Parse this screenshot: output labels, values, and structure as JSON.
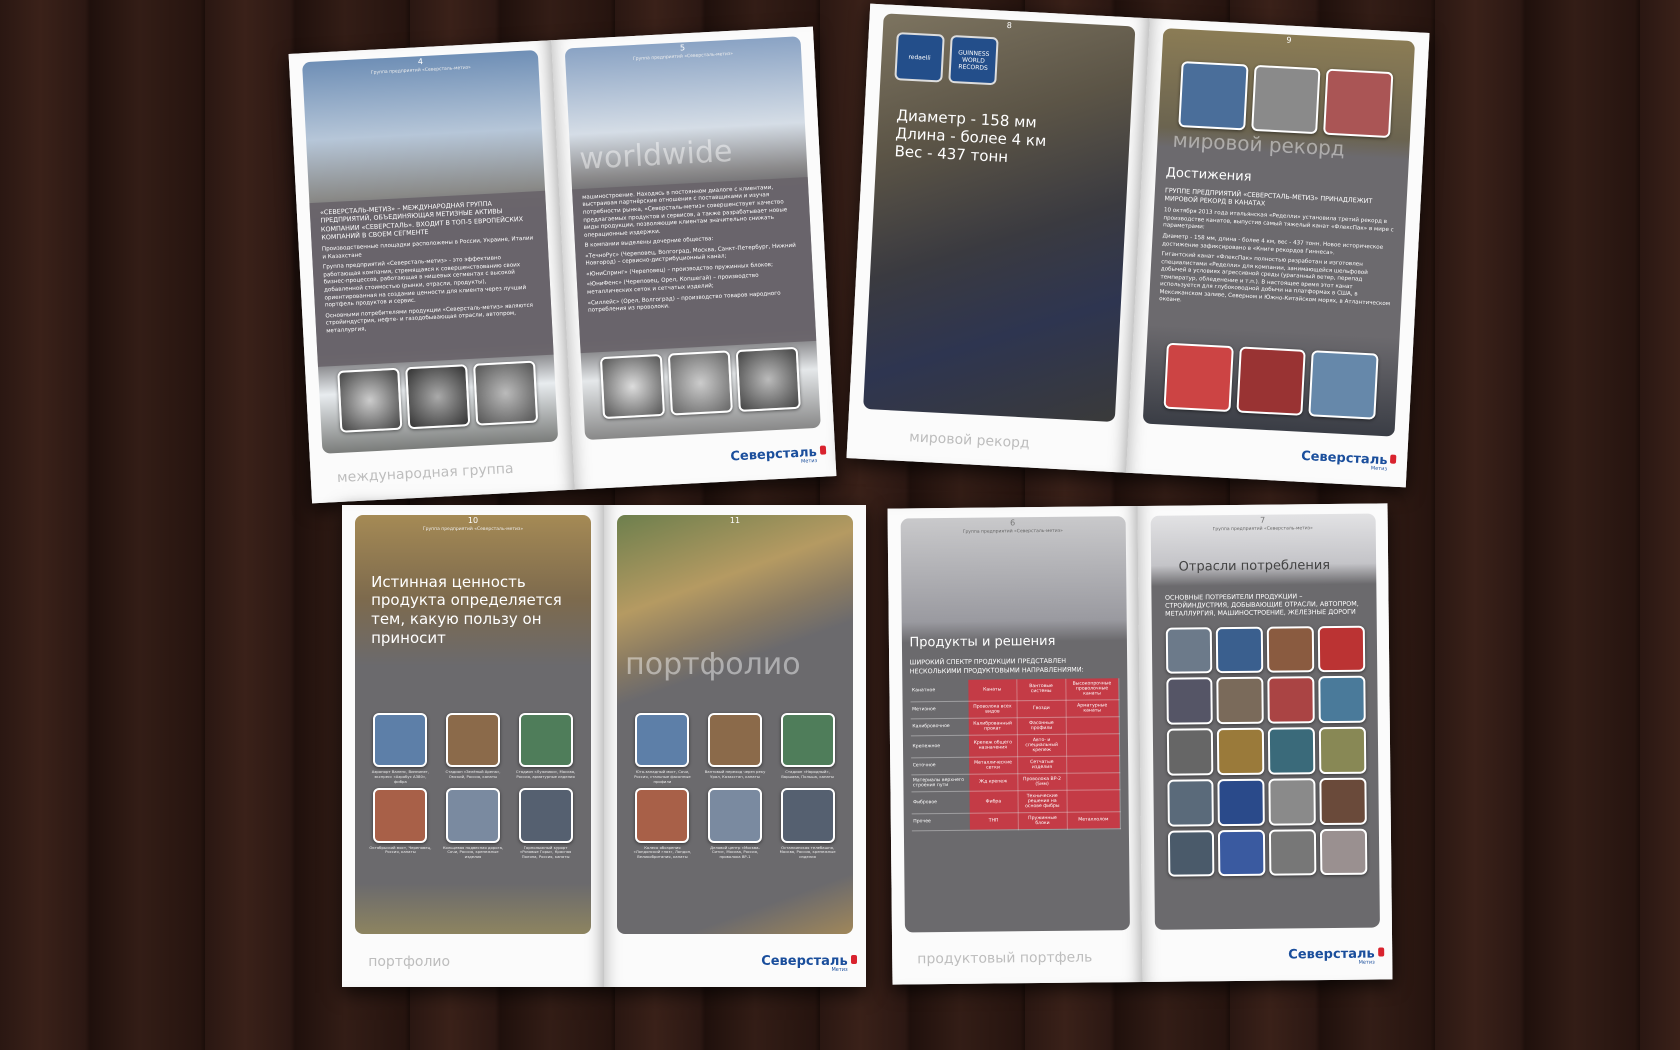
{
  "spreads": [
    {
      "left": {
        "page": "4",
        "header": "Группа предприятий «Северсталь-метиз»",
        "lead": "«Северсталь-метиз» – международная группа предприятий, объединяющая метизные активы компании «Северсталь». Входит в топ-5 европейских компаний в своем сегменте",
        "body": [
          "Производственные площадки расположены в России, Украине, Италии и Казахстане",
          "Группа предприятий «Северсталь-метиз» - это эффективно работающая компания, стремящаяся к совершенствованию своих бизнес-процессов, работающая в нишевых сегментах с высокой добавленной стоимостью (рынки, отрасли, продукты), ориентированная на создание ценности для клиента через лучший портфель продуктов и сервис.",
          "Основными потребителями продукции «Северсталь-метиз» являются стройиндустрия, нефте- и газодобывающая отрасли, автопром, металлургия,"
        ],
        "footer": "международная группа"
      },
      "right": {
        "page": "5",
        "header": "Группа предприятий «Северсталь-метиз»",
        "overlay": "worldwide",
        "body": [
          "машиностроение. Находясь в постоянном диалоге с клиентами, выстраивая партнёрские отношения с поставщиками и изучая потребности рынка, «Северсталь-метиз» совершенствует качество предлагаемых продуктов и сервисов, а также разрабатывает новые виды продукции, позволяющие клиентам значительно снижать операционные издержки.",
          "В компании выделены дочерние общества:",
          "«ТечноРус» (Череповец, Волгоград, Москва, Санкт-Петербург, Нижний Новгород) – сервисно-дистрибуционный канал;",
          "«ЮниСпринг» (Череповец) – производство пружинных блоков;",
          "«ЮниФенс» (Череповец, Орел, Копшегай) – производство металлических сеток и сетчатых изделий;",
          "«Силлейс» (Орел, Волгоград) – производство товаров народного потребления из проволоки."
        ],
        "logo": "Северсталь",
        "logo_sub": "Метиз"
      }
    },
    {
      "left": {
        "page": "8",
        "badges": [
          "redaelli",
          "GUINNESS WORLD RECORDS"
        ],
        "facts": [
          "Диаметр - 158 мм",
          "Длина - более 4 км",
          "Вес - 437 тонн"
        ],
        "footer": "мировой рекорд"
      },
      "right": {
        "page": "9",
        "overlay": "мировой рекорд",
        "heading": "Достижения",
        "lead": "Группе предприятий «Северсталь-метиз» принадлежит мировой рекорд в канатах",
        "body": [
          "10 октября 2013 года итальянская «Ределли» установила третий рекорд в производстве канатов, выпустив самый тяжелый канат «ФлексПак» в мире с параметрами:",
          "Диаметр - 158 мм, длина - более 4 км, вес - 437 тонн. Новое историческое достижение зафиксировано в «Книге рекордов Гиннеса».",
          "Гигантский канат «ФлексПак» полностью разработан и изготовлен специалистами «Ределли» для компании, занимающейся шельфовой добычей в условиях агрессивной среды (ураганный ветер, перепад температур, обледенение и т.п.). В настоящее время этот канат используется для глубоководной добычи на платформах в США, в Мексиканском заливе, Северном и Южно-Китайском морях, в Атлантическом океане."
        ],
        "logo": "Северсталь",
        "logo_sub": "Метиз"
      }
    },
    {
      "left": {
        "page": "10",
        "header": "Группа предприятий «Северсталь-метиз»",
        "heading": "Истинная ценность продукта определяется тем, какую пользу он приносит",
        "captions": [
          "Аэропорт Валенс, Виннипег, экспресс «Аэробус A380», фибра",
          "Стадион «Зелёный Арена», Омский, Россия, канаты",
          "Стадион «Лужники», Москва, Россия, арматурные изделия",
          "Октябрьский мост, Череповец, Россия, канаты",
          "Кольцевая подвесная дорога, Сочи, Россия, крепежные изделия",
          "Горнолыжный курорт «Розовые Горы», Красная Поляна, Россия, канаты"
        ],
        "footer": "портфолио"
      },
      "right": {
        "page": "11",
        "overlay": "портфолио",
        "captions": [
          "Юго-западный мост, Сочи, Россия, стальные фасонные профили",
          "Вантовый переход через реку Урал, Казахстан, канаты",
          "Стадион «Народный», Варшава, Польша, канаты",
          "Колесо обозрения «Лондонский глаз», Лондон, Великобритания, канаты",
          "Деловой центр «Москва-Сити», Москва, Россия, проволока ВР-1",
          "Останкинская телебашня, Москва, Россия, крепежные изделия"
        ],
        "logo": "Северсталь",
        "logo_sub": "Метиз"
      }
    },
    {
      "left": {
        "page": "6",
        "header": "Группа предприятий «Северсталь-метиз»",
        "heading": "Продукты и решения",
        "lead": "Широкий спектр продукции представлен несколькими продуктовыми направлениями:",
        "table": [
          [
            "Канатное",
            "Канаты",
            "Вантовые системы",
            "Высокопрочные проволочные канаты"
          ],
          [
            "Метизное",
            "Проволока всех видов",
            "Гвозди",
            "Арматурные канаты"
          ],
          [
            "Калибровочное",
            "Калиброванный прокат",
            "Фасонные профили",
            ""
          ],
          [
            "Крепежное",
            "Крепеж общего назначения",
            "Авто- и специальный крепеж",
            ""
          ],
          [
            "Сеточное",
            "Металлические сетки",
            "Сетчатые изделия",
            ""
          ],
          [
            "Материалы верхнего строения пути",
            "Жд крепеж",
            "Проволока ВР-2 (5мм)",
            ""
          ],
          [
            "Фибровое",
            "Фибра",
            "Технические решения на основе фибры",
            ""
          ],
          [
            "Прочее",
            "ТНП",
            "Пружинные блоки",
            "Металлолом"
          ]
        ],
        "footer": "продуктовый портфель"
      },
      "right": {
        "page": "7",
        "header": "Группа предприятий «Северсталь-метиз»",
        "heading": "Отрасли потребления",
        "lead": "Основные потребители продукции – стройиндустрия, добывающие отрасли, автопром, металлургия, машиностроение, железные дороги",
        "logo": "Северсталь",
        "logo_sub": "Метиз"
      }
    }
  ]
}
